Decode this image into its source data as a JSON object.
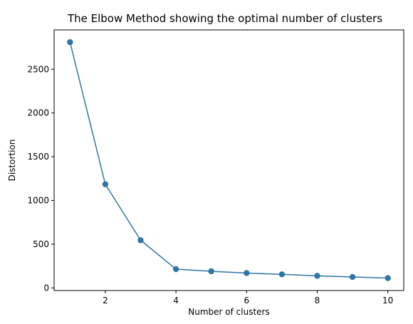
{
  "chart_data": {
    "type": "line",
    "title": "The Elbow Method showing the optimal number of clusters",
    "xlabel": "Number of clusters",
    "ylabel": "Distortion",
    "x": [
      1,
      2,
      3,
      4,
      5,
      6,
      7,
      8,
      9,
      10
    ],
    "series": [
      {
        "values": [
          2810,
          1185,
          545,
          215,
          190,
          170,
          155,
          138,
          125,
          112
        ]
      }
    ],
    "xlim": [
      0.55,
      10.45
    ],
    "ylim": [
      -30,
      2950
    ],
    "xticks": [
      2,
      4,
      6,
      8,
      10
    ],
    "yticks": [
      0,
      500,
      1000,
      1500,
      2000,
      2500
    ],
    "grid": false,
    "marker": "circle",
    "color": "#2f75a6"
  }
}
